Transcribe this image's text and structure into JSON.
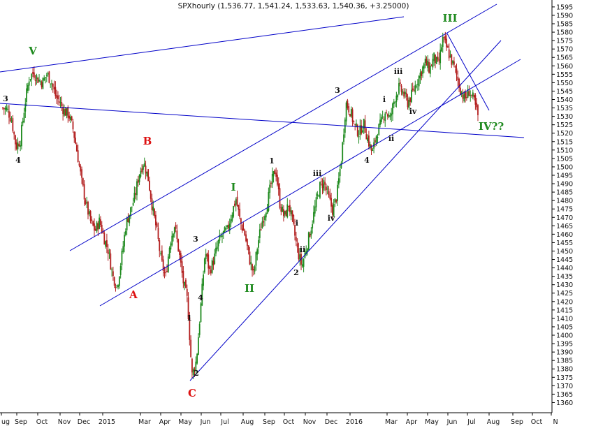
{
  "title": "SPXhourly (1,536.77, 1,541.24, 1,533.63, 1,540.36, +3.25000)",
  "colors": {
    "up_bar": "#1e8a1e",
    "down_bar": "#b21e1e",
    "trendline": "#0000c8",
    "red_label": "#dd1111",
    "green_label": "#1f8a1f",
    "black_label": "#111111"
  },
  "chart_data": {
    "type": "candlestick",
    "title": "SPXhourly (1,536.77, 1,541.24, 1,533.63, 1,540.36, +3.25000)",
    "y_axis": {
      "position": "right",
      "ylim": [
        1355,
        1595
      ],
      "step": 5
    },
    "x_ticks": [
      "ug",
      "Sep",
      "Oct",
      "Nov",
      "Dec",
      "2015",
      "Mar",
      "Apr",
      "May",
      "Jun",
      "Jul",
      "Aug",
      "Sep",
      "Oct",
      "Nov",
      "Dec",
      "2016",
      "Mar",
      "Apr",
      "May",
      "Jun",
      "Jul",
      "Aug",
      "Sep",
      "Oct",
      "N"
    ],
    "price_path": [
      [
        0,
        1535
      ],
      [
        1,
        1534
      ],
      [
        2,
        1528
      ],
      [
        3,
        1512
      ],
      [
        4,
        1516
      ],
      [
        5,
        1537
      ],
      [
        6,
        1553
      ],
      [
        7,
        1556
      ],
      [
        8,
        1552
      ],
      [
        9,
        1550
      ],
      [
        10,
        1555
      ],
      [
        11,
        1551
      ],
      [
        12,
        1542
      ],
      [
        13,
        1538
      ],
      [
        14,
        1533
      ],
      [
        15,
        1531
      ],
      [
        16,
        1522
      ],
      [
        17,
        1507
      ],
      [
        18,
        1490
      ],
      [
        19,
        1477
      ],
      [
        20,
        1467
      ],
      [
        21,
        1462
      ],
      [
        22,
        1468
      ],
      [
        23,
        1458
      ],
      [
        24,
        1450
      ],
      [
        25,
        1435
      ],
      [
        26,
        1429
      ],
      [
        27,
        1446
      ],
      [
        28,
        1466
      ],
      [
        29,
        1474
      ],
      [
        30,
        1482
      ],
      [
        31,
        1496
      ],
      [
        32,
        1503
      ],
      [
        33,
        1494
      ],
      [
        34,
        1476
      ],
      [
        35,
        1462
      ],
      [
        36,
        1444
      ],
      [
        37,
        1434
      ],
      [
        38,
        1455
      ],
      [
        39,
        1466
      ],
      [
        40,
        1450
      ],
      [
        41,
        1432
      ],
      [
        42,
        1420
      ],
      [
        43,
        1376
      ],
      [
        44,
        1385
      ],
      [
        45,
        1417
      ],
      [
        46,
        1450
      ],
      [
        47,
        1438
      ],
      [
        48,
        1445
      ],
      [
        49,
        1455
      ],
      [
        50,
        1460
      ],
      [
        51,
        1462
      ],
      [
        52,
        1472
      ],
      [
        53,
        1481
      ],
      [
        54,
        1467
      ],
      [
        55,
        1460
      ],
      [
        56,
        1446
      ],
      [
        57,
        1436
      ],
      [
        58,
        1455
      ],
      [
        59,
        1468
      ],
      [
        60,
        1477
      ],
      [
        61,
        1490
      ],
      [
        62,
        1499
      ],
      [
        63,
        1478
      ],
      [
        64,
        1470
      ],
      [
        65,
        1478
      ],
      [
        66,
        1465
      ],
      [
        67,
        1450
      ],
      [
        68,
        1441
      ],
      [
        69,
        1452
      ],
      [
        70,
        1463
      ],
      [
        71,
        1476
      ],
      [
        72,
        1488
      ],
      [
        73,
        1491
      ],
      [
        74,
        1482
      ],
      [
        75,
        1474
      ],
      [
        76,
        1484
      ],
      [
        77,
        1506
      ],
      [
        78,
        1538
      ],
      [
        79,
        1533
      ],
      [
        80,
        1524
      ],
      [
        81,
        1520
      ],
      [
        82,
        1526
      ],
      [
        83,
        1516
      ],
      [
        84,
        1508
      ],
      [
        85,
        1520
      ],
      [
        86,
        1526
      ],
      [
        87,
        1534
      ],
      [
        88,
        1528
      ],
      [
        89,
        1540
      ],
      [
        90,
        1547
      ],
      [
        91,
        1544
      ],
      [
        92,
        1538
      ],
      [
        93,
        1543
      ],
      [
        94,
        1550
      ],
      [
        95,
        1556
      ],
      [
        96,
        1562
      ],
      [
        97,
        1558
      ],
      [
        98,
        1565
      ],
      [
        99,
        1560
      ],
      [
        100,
        1576
      ],
      [
        101,
        1570
      ],
      [
        102,
        1563
      ],
      [
        103,
        1556
      ],
      [
        104,
        1546
      ],
      [
        105,
        1540
      ],
      [
        106,
        1545
      ],
      [
        107,
        1540
      ],
      [
        108,
        1530
      ]
    ],
    "wave_labels": [
      {
        "text": "V",
        "color": "green",
        "date": "Sep",
        "price": 1570
      },
      {
        "text": "3",
        "color": "black",
        "date": "Aug",
        "price": 1540
      },
      {
        "text": "4",
        "color": "black",
        "date": "Aug",
        "price": 1505
      },
      {
        "text": "B",
        "color": "red",
        "date": "Mar",
        "price": 1512
      },
      {
        "text": "A",
        "color": "red",
        "date": "Feb",
        "price": 1422
      },
      {
        "text": "3",
        "color": "black",
        "date": "May",
        "price": 1452
      },
      {
        "text": "4",
        "color": "black",
        "date": "May",
        "price": 1422
      },
      {
        "text": "1",
        "color": "black",
        "date": "May",
        "price": 1406
      },
      {
        "text": "2",
        "color": "black",
        "date": "May",
        "price": 1381
      },
      {
        "text": "C",
        "color": "red",
        "date": "May",
        "price": 1365
      },
      {
        "text": "I",
        "color": "green",
        "date": "Jul",
        "price": 1490
      },
      {
        "text": "II",
        "color": "green",
        "date": "Aug",
        "price": 1426
      },
      {
        "text": "1",
        "color": "black",
        "date": "Sep",
        "price": 1505
      },
      {
        "text": "i",
        "color": "black",
        "date": "Oct",
        "price": 1464
      },
      {
        "text": "ii",
        "color": "black",
        "date": "Oct",
        "price": 1451
      },
      {
        "text": "2",
        "color": "black",
        "date": "Oct",
        "price": 1437
      },
      {
        "text": "iii",
        "color": "black",
        "date": "Nov",
        "price": 1496
      },
      {
        "text": "iv",
        "color": "black",
        "date": "Nov",
        "price": 1468
      },
      {
        "text": "3",
        "color": "black",
        "date": "Dec",
        "price": 1547
      },
      {
        "text": "4",
        "color": "black",
        "date": "Jan",
        "price": 1502
      },
      {
        "text": "i",
        "color": "black",
        "date": "Feb",
        "price": 1540
      },
      {
        "text": "ii",
        "color": "black",
        "date": "Feb",
        "price": 1514
      },
      {
        "text": "iii",
        "color": "black",
        "date": "Mar",
        "price": 1560
      },
      {
        "text": "iv",
        "color": "black",
        "date": "Apr",
        "price": 1531
      },
      {
        "text": "III",
        "color": "green",
        "date": "May",
        "price": 1584
      },
      {
        "text": "IV??",
        "color": "green",
        "date": "Jul",
        "price": 1522
      }
    ],
    "trendlines": [
      {
        "from": [
          "Aug",
          1553
        ],
        "to": [
          "Sep",
          1585
        ]
      },
      {
        "from": [
          "Aug",
          1535
        ],
        "to": [
          "Sep",
          1515
        ]
      },
      {
        "from": [
          "Dec",
          1448
        ],
        "to": [
          "Jul",
          1594
        ]
      },
      {
        "from": [
          "Jan",
          1422
        ],
        "to": [
          "Aug",
          1562
        ]
      },
      {
        "from": [
          "May",
          1373
        ],
        "to": [
          "Aug",
          1573
        ]
      },
      {
        "from": [
          "May",
          1576
        ],
        "to": [
          "Jul",
          1530
        ]
      }
    ]
  }
}
